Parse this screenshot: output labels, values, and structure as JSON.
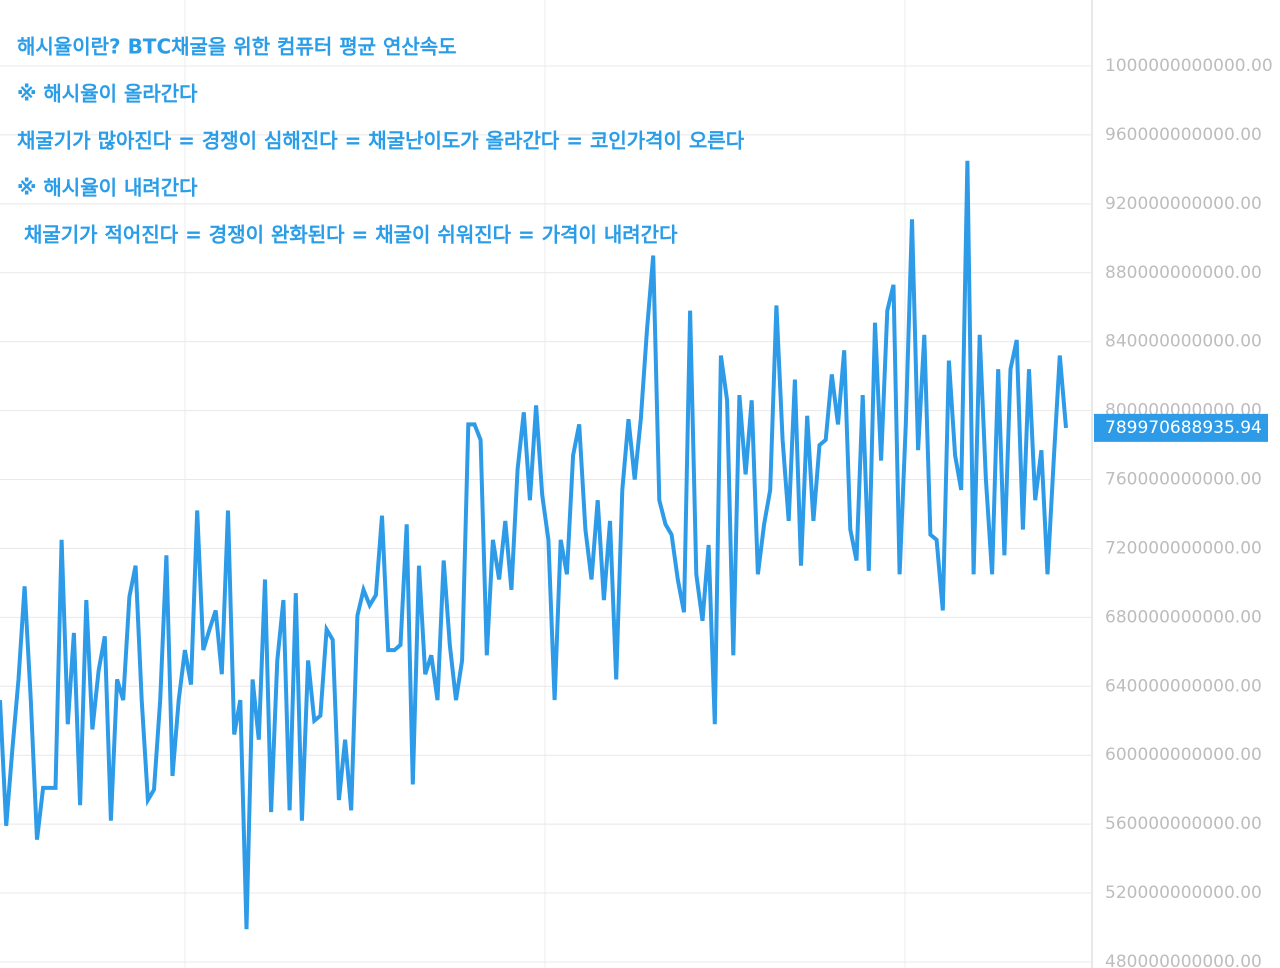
{
  "chart_data": {
    "type": "line",
    "annotations": [
      "해시율이란? BTC채굴을 위한 컴퓨터 평균 연산속도",
      "※ 해시율이 올라간다",
      "채굴기가 많아진다 = 경쟁이 심해진다 = 채굴난이도가 올라간다 = 코인가격이 오른다",
      "※ 해시율이 내려간다",
      " 채굴기가 적어진다 = 경쟁이 완화된다 = 채굴이 쉬워진다 = 가격이 내려간다"
    ],
    "color": "#2e9be8",
    "grid": true,
    "ylim": [
      476500000000,
      1038300000000
    ],
    "yticks": [
      {
        "value": 480000000000,
        "label": "480000000000.00"
      },
      {
        "value": 520000000000,
        "label": "520000000000.00"
      },
      {
        "value": 560000000000,
        "label": "560000000000.00"
      },
      {
        "value": 600000000000,
        "label": "600000000000.00"
      },
      {
        "value": 640000000000,
        "label": "640000000000.00"
      },
      {
        "value": 680000000000,
        "label": "680000000000.00"
      },
      {
        "value": 720000000000,
        "label": "720000000000.00"
      },
      {
        "value": 760000000000,
        "label": "760000000000.00"
      },
      {
        "value": 800000000000,
        "label": "800000000000.00"
      },
      {
        "value": 840000000000,
        "label": "840000000000.00"
      },
      {
        "value": 880000000000,
        "label": "880000000000.00"
      },
      {
        "value": 920000000000,
        "label": "920000000000.00"
      },
      {
        "value": 960000000000,
        "label": "960000000000.00"
      },
      {
        "value": 1000000000000,
        "label": "1000000000000.00"
      }
    ],
    "values": [
      632000000000.0,
      559000000000.0,
      603000000000.0,
      644000000000.0,
      698000000000.0,
      632000000000.0,
      551000000000.0,
      581000000000.0,
      581000000000.0,
      581000000000.0,
      725000000000.0,
      618000000000.0,
      671000000000.0,
      571000000000.0,
      690000000000.0,
      615000000000.0,
      649000000000.0,
      669000000000.0,
      562000000000.0,
      644000000000.0,
      632000000000.0,
      692000000000.0,
      710000000000.0,
      632000000000.0,
      574000000000.0,
      580000000000.0,
      632000000000.0,
      716000000000.0,
      588000000000.0,
      632000000000.0,
      661000000000.0,
      641000000000.0,
      742000000000.0,
      661000000000.0,
      673000000000.0,
      684000000000.0,
      647000000000.0,
      742000000000.0,
      612000000000.0,
      632000000000.0,
      499000000000.0,
      644000000000.0,
      609000000000.0,
      702000000000.0,
      567000000000.0,
      655000000000.0,
      690000000000.0,
      568000000000.0,
      694000000000.0,
      562000000000.0,
      655000000000.0,
      620000000000.0,
      623000000000.0,
      673000000000.0,
      667000000000.0,
      574000000000.0,
      609000000000.0,
      568000000000.0,
      681000000000.0,
      696000000000.0,
      687000000000.0,
      693000000000.0,
      739000000000.0,
      661000000000.0,
      661000000000.0,
      664000000000.0,
      734000000000.0,
      583000000000.0,
      710000000000.0,
      647000000000.0,
      658000000000.0,
      632000000000.0,
      713000000000.0,
      664000000000.0,
      632000000000.0,
      655000000000.0,
      792000000000.0,
      792000000000.0,
      783000000000.0,
      658000000000.0,
      725000000000.0,
      702000000000.0,
      736000000000.0,
      696000000000.0,
      766000000000.0,
      799000000000.0,
      748000000000.0,
      803000000000.0,
      751000000000.0,
      725000000000.0,
      632000000000.0,
      725000000000.0,
      705000000000.0,
      774000000000.0,
      792000000000.0,
      731000000000.0,
      702000000000.0,
      748000000000.0,
      690000000000.0,
      736000000000.0,
      644000000000.0,
      754000000000.0,
      795000000000.0,
      760000000000.0,
      795000000000.0,
      847000000000.0,
      890000000000.0,
      748000000000.0,
      734000000000.0,
      728000000000.0,
      702000000000.0,
      683000000000.0,
      858000000000.0,
      705000000000.0,
      678000000000.0,
      722000000000.0,
      618000000000.0,
      832000000000.0,
      806000000000.0,
      658000000000.0,
      809000000000.0,
      763000000000.0,
      806000000000.0,
      705000000000.0,
      734000000000.0,
      754000000000.0,
      861000000000.0,
      783000000000.0,
      736000000000.0,
      818000000000.0,
      710000000000.0,
      797000000000.0,
      736000000000.0,
      780000000000.0,
      783000000000.0,
      821000000000.0,
      792000000000.0,
      835000000000.0,
      731000000000.0,
      713000000000.0,
      809000000000.0,
      707000000000.0,
      851000000000.0,
      771000000000.0,
      858000000000.0,
      873000000000.0,
      705000000000.0,
      792000000000.0,
      911000000000.0,
      777000000000.0,
      844000000000.0,
      728000000000.0,
      725000000000.0,
      684000000000.0,
      829000000000.0,
      774000000000.0,
      754000000000.0,
      945000000000.0,
      705000000000.0,
      844000000000.0,
      760000000000.0,
      705000000000.0,
      824000000000.0,
      716000000000.0,
      824000000000.0,
      841000000000.0,
      731000000000.0,
      824000000000.0,
      748000000000.0,
      777000000000.0,
      705000000000.0,
      771000000000.0,
      832000000000.0,
      789970688935.94
    ]
  }
}
